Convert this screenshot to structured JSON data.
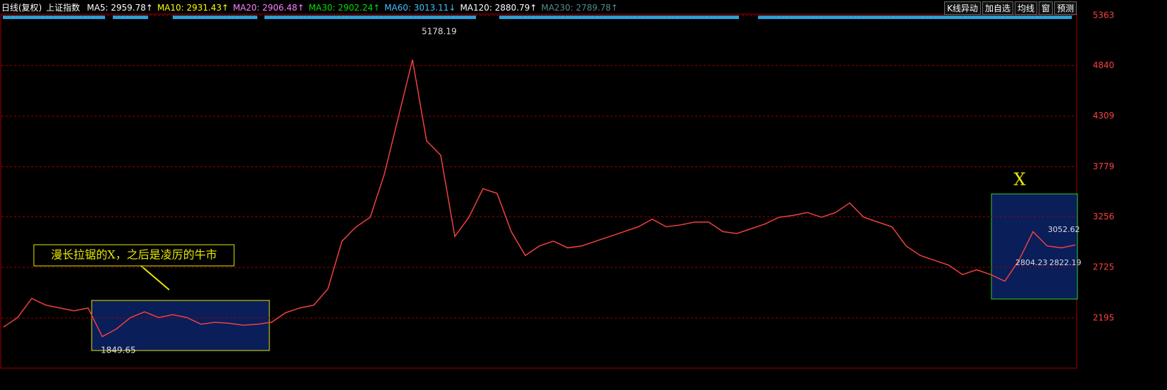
{
  "header": {
    "period": "日线(复权)",
    "index": "上证指数",
    "indicators": [
      {
        "label": "MA5: 2959.78↑",
        "color": "#ffffff"
      },
      {
        "label": "MA10: 2931.43↑",
        "color": "#ffff00"
      },
      {
        "label": "MA20: 2906.48↑",
        "color": "#ff80ff"
      },
      {
        "label": "MA30: 2902.24↑",
        "color": "#00e000"
      },
      {
        "label": "MA60: 3013.11↓",
        "color": "#40c0ff"
      },
      {
        "label": "MA120: 2880.79↑",
        "color": "#ffffff"
      },
      {
        "label": "MA230: 2789.78↑",
        "color": "#508c8c"
      }
    ]
  },
  "toolbar": [
    "K线异动",
    "加自选",
    "均线",
    "窗",
    "预测"
  ],
  "chart_data": {
    "type": "line",
    "color": "#f04040",
    "categories": [
      null,
      null,
      null,
      null,
      null,
      null,
      null,
      null,
      null,
      null,
      null,
      null,
      null,
      null,
      null,
      null,
      null,
      null,
      null,
      null,
      null,
      null,
      null,
      null,
      null,
      null,
      null,
      null,
      null,
      null,
      null,
      null,
      null,
      null,
      null,
      null,
      null,
      null,
      null,
      null,
      null,
      null,
      null,
      null,
      null,
      null,
      null,
      null,
      null,
      null,
      null,
      null,
      null,
      null,
      null,
      null,
      null,
      null,
      null,
      null,
      null,
      null,
      null,
      null,
      null,
      null,
      null,
      null,
      null,
      null,
      null,
      null,
      null,
      null,
      null,
      null,
      null
    ],
    "values": [
      2100,
      2200,
      2400,
      2330,
      2300,
      2270,
      2300,
      2000,
      2080,
      2200,
      2260,
      2200,
      2230,
      2200,
      2130,
      2150,
      2140,
      2120,
      2130,
      2150,
      2250,
      2300,
      2330,
      2500,
      3000,
      3150,
      3250,
      3700,
      4300,
      4900,
      4050,
      3900,
      3050,
      3250,
      3550,
      3500,
      3100,
      2850,
      2950,
      3000,
      2930,
      2950,
      3000,
      3050,
      3100,
      3150,
      3230,
      3150,
      3170,
      3200,
      3200,
      3100,
      3080,
      3130,
      3180,
      3250,
      3270,
      3300,
      3250,
      3300,
      3400,
      3250,
      3200,
      3150,
      2950,
      2850,
      2800,
      2750,
      2650,
      2700,
      2650,
      2580,
      2800,
      3100,
      2950,
      2930,
      2960
    ],
    "ylim": [
      1670,
      5393
    ],
    "yticks": [
      2195,
      2725,
      3256,
      3779,
      4309,
      4840,
      5363
    ],
    "grid": true,
    "annotations": [
      "5178.19",
      "1849.65",
      "漫长拉锯的X，之后是凌厉的牛市",
      "X",
      "3052.62",
      "2804.23",
      "2822.19"
    ]
  }
}
